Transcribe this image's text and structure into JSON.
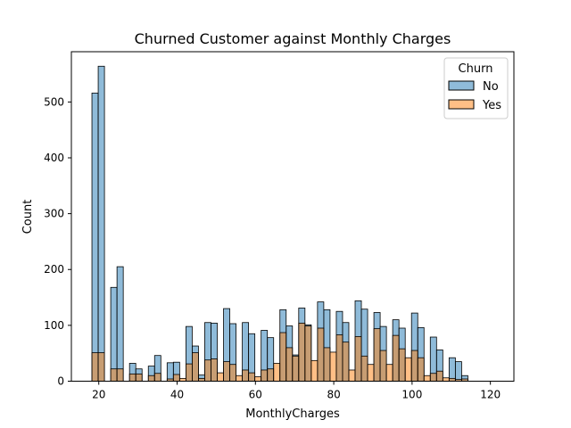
{
  "chart_data": {
    "type": "bar",
    "subtype": "overlapping-histogram",
    "title": "Churned Customer against Monthly Charges",
    "xlabel": "MonthlyCharges",
    "ylabel": "Count",
    "xlim": [
      13.0,
      126.0
    ],
    "ylim": [
      0,
      590
    ],
    "xticks": [
      20,
      40,
      60,
      80,
      100,
      120
    ],
    "yticks": [
      0,
      100,
      200,
      300,
      400,
      500
    ],
    "grid": false,
    "legend_title": "Churn",
    "legend_placement": "top-right",
    "bin_start": 18.25,
    "bin_width": 1.6,
    "series": [
      {
        "name": "No",
        "color": "#1f77b4",
        "alpha": 0.5,
        "values": [
          516,
          564,
          0,
          168,
          205,
          0,
          32,
          22,
          0,
          27,
          46,
          0,
          33,
          34,
          0,
          98,
          63,
          11,
          105,
          104,
          0,
          130,
          103,
          0,
          105,
          85,
          0,
          91,
          78,
          0,
          128,
          99,
          47,
          131,
          101,
          0,
          142,
          128,
          0,
          125,
          105,
          0,
          144,
          129,
          0,
          123,
          98,
          0,
          110,
          95,
          0,
          122,
          96,
          0,
          79,
          56,
          0,
          42,
          35,
          10
        ]
      },
      {
        "name": "Yes",
        "color": "#ff7f0e",
        "alpha": 0.5,
        "values": [
          51,
          51,
          0,
          22,
          22,
          0,
          13,
          13,
          0,
          10,
          14,
          0,
          4,
          12,
          5,
          31,
          51,
          5,
          38,
          40,
          15,
          35,
          30,
          10,
          20,
          15,
          8,
          20,
          22,
          32,
          87,
          60,
          45,
          104,
          99,
          37,
          95,
          60,
          52,
          83,
          70,
          20,
          80,
          45,
          30,
          94,
          55,
          30,
          82,
          58,
          42,
          55,
          42,
          10,
          14,
          18,
          6,
          5,
          3,
          4
        ]
      }
    ]
  }
}
